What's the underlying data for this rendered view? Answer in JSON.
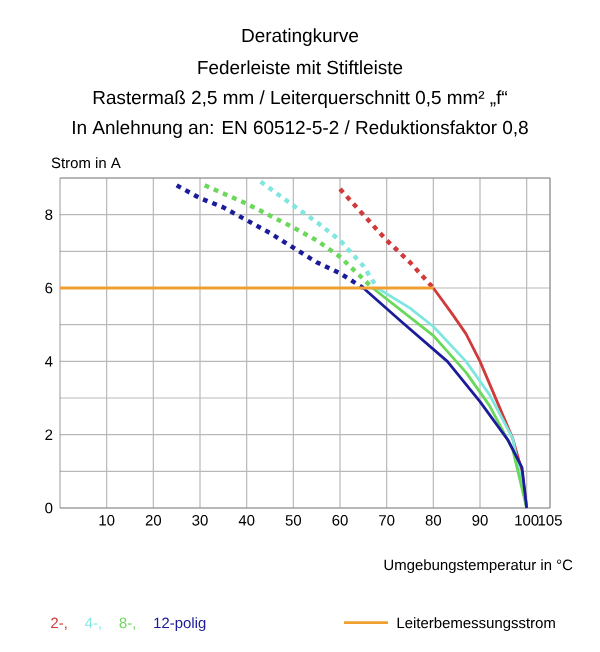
{
  "chart_data": {
    "type": "line",
    "title": "Deratingkurve",
    "subtitle": "Federleiste mit Stiftleiste",
    "annotations": [
      "Rastermaß 2,5 mm / Leiterquerschnitt 0,5 mm² „f“",
      "In Anlehnung an: EN 60512-5-2 / Reduktionsfaktor 0,8"
    ],
    "xlabel": "Umgebungstemperatur in °C",
    "ylabel": "Strom in A",
    "xlim": [
      0,
      105
    ],
    "ylim": [
      0,
      9
    ],
    "xticks": [
      10,
      20,
      30,
      40,
      50,
      60,
      70,
      80,
      90,
      100,
      105
    ],
    "yticks": [
      0,
      {
        "value": 1,
        "label": null
      },
      2,
      {
        "value": 3,
        "label": null
      },
      4,
      {
        "value": 5,
        "label": null
      },
      6,
      {
        "value": 7,
        "label": null
      },
      8,
      {
        "value": 9,
        "label": null
      }
    ],
    "grid": true,
    "legend": "bottom",
    "series": [
      {
        "color": "#d03a3a",
        "line_style": "dashed",
        "x": [
          60,
          65,
          70,
          75,
          80
        ],
        "values": [
          8.7,
          8.0,
          7.3,
          6.7,
          6.0
        ]
      },
      {
        "name": "2-,",
        "color": "#d03a3a",
        "line_style": "solid",
        "x": [
          80,
          84,
          87,
          90,
          93,
          95,
          97,
          99,
          100
        ],
        "values": [
          6.0,
          5.3,
          4.75,
          4.0,
          3.1,
          2.5,
          1.9,
          1.0,
          0
        ]
      },
      {
        "color": "#80e6e0",
        "line_style": "dashed",
        "x": [
          43,
          50,
          55,
          60,
          65,
          68
        ],
        "values": [
          8.9,
          8.25,
          7.8,
          7.3,
          6.6,
          6.0
        ]
      },
      {
        "name": "4-,",
        "color": "#80e6e0",
        "line_style": "solid",
        "x": [
          68,
          75,
          80,
          87,
          92,
          97,
          100
        ],
        "values": [
          6.0,
          5.45,
          4.95,
          4.0,
          3.1,
          1.9,
          0
        ]
      },
      {
        "color": "#6ad85a",
        "line_style": "dashed",
        "x": [
          31,
          40,
          50,
          55,
          60,
          67
        ],
        "values": [
          8.8,
          8.3,
          7.65,
          7.3,
          6.85,
          6.0
        ]
      },
      {
        "name": "8-,",
        "color": "#6ad85a",
        "line_style": "solid",
        "x": [
          67,
          74,
          80,
          87,
          92,
          97,
          100
        ],
        "values": [
          6.0,
          5.3,
          4.7,
          3.7,
          2.8,
          1.6,
          0
        ]
      },
      {
        "color": "#1c1c9a",
        "line_style": "dashed",
        "x": [
          25,
          30,
          35,
          40,
          45,
          50,
          55,
          60,
          65
        ],
        "values": [
          8.8,
          8.45,
          8.2,
          7.85,
          7.5,
          7.1,
          6.7,
          6.4,
          6.0
        ]
      },
      {
        "name": "12-polig",
        "color": "#1c1c9a",
        "line_style": "solid",
        "x": [
          65,
          73,
          83,
          90,
          96,
          99,
          100
        ],
        "values": [
          6.0,
          5.1,
          4.0,
          2.9,
          1.85,
          1.1,
          0
        ]
      },
      {
        "name": "Leiterbemessungsstrom",
        "color": "#f0a030",
        "line_style": "solid",
        "x": [
          0,
          80
        ],
        "values": [
          6,
          6
        ]
      }
    ]
  }
}
